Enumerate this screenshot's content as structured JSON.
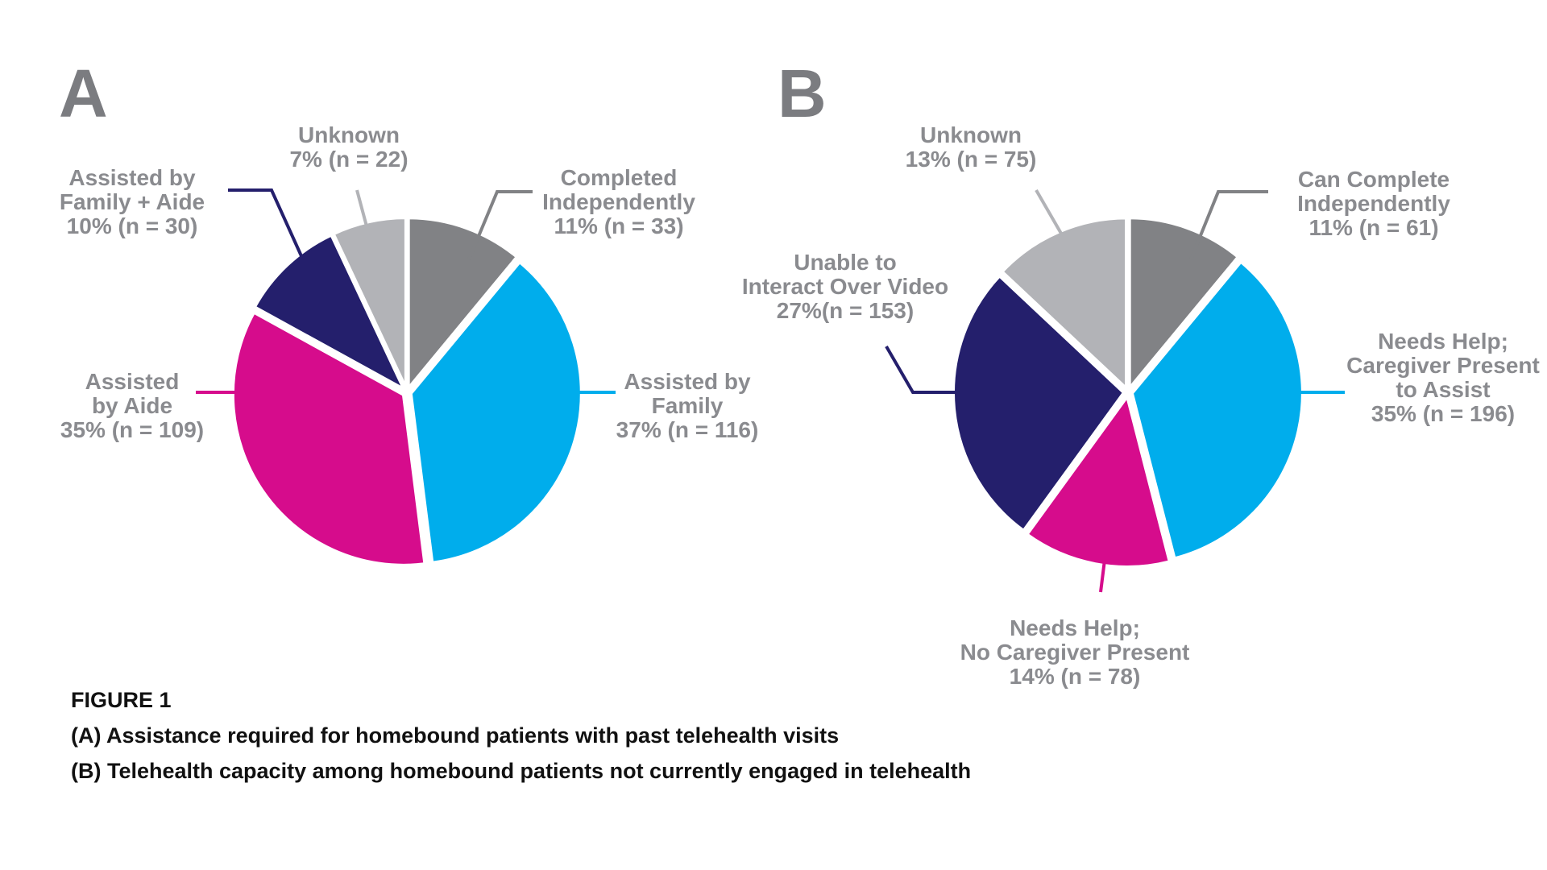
{
  "figure": {
    "title": "FIGURE 1",
    "caption_a": "(A) Assistance required for homebound patients with past telehealth visits",
    "caption_b": "(B) Telehealth capacity among homebound patients not currently engaged in telehealth"
  },
  "colors": {
    "dark_gray": "#818285",
    "light_gray": "#b2b3b7",
    "blue": "#00adec",
    "magenta": "#d60c8c",
    "navy": "#241f6c",
    "label_text": "#8a8b8f",
    "panel_letter": "#7b7c80"
  },
  "chart_data": [
    {
      "type": "pie",
      "panel": "A",
      "start": "12 o'clock, clockwise",
      "slices": [
        {
          "label": [
            "Completed",
            "Independently",
            "11% (n = 33)"
          ],
          "percent": 11,
          "n": 33,
          "color": "#818285"
        },
        {
          "label": [
            "Assisted by",
            "Family",
            "37% (n = 116)"
          ],
          "percent": 37,
          "n": 116,
          "color": "#00adec"
        },
        {
          "label": [
            "Assisted",
            "by Aide",
            "35% (n = 109)"
          ],
          "percent": 35,
          "n": 109,
          "color": "#d60c8c"
        },
        {
          "label": [
            "Assisted by",
            "Family + Aide",
            "10% (n = 30)"
          ],
          "percent": 10,
          "n": 30,
          "color": "#241f6c"
        },
        {
          "label": [
            "Unknown",
            "7% (n = 22)"
          ],
          "percent": 7,
          "n": 22,
          "color": "#b2b3b7"
        }
      ]
    },
    {
      "type": "pie",
      "panel": "B",
      "start": "12 o'clock, clockwise",
      "slices": [
        {
          "label": [
            "Can Complete",
            "Independently",
            "11% (n = 61)"
          ],
          "percent": 11,
          "n": 61,
          "color": "#818285"
        },
        {
          "label": [
            "Needs Help;",
            "Caregiver Present",
            "to Assist",
            "35% (n = 196)"
          ],
          "percent": 35,
          "n": 196,
          "color": "#00adec"
        },
        {
          "label": [
            "Needs Help;",
            "No Caregiver Present",
            "14% (n = 78)"
          ],
          "percent": 14,
          "n": 78,
          "color": "#d60c8c"
        },
        {
          "label": [
            "Unable to",
            "Interact Over Video",
            "27%(n = 153)"
          ],
          "percent": 27,
          "n": 153,
          "color": "#241f6c"
        },
        {
          "label": [
            "Unknown",
            "13% (n = 75)"
          ],
          "percent": 13,
          "n": 75,
          "color": "#b2b3b7"
        }
      ]
    }
  ]
}
